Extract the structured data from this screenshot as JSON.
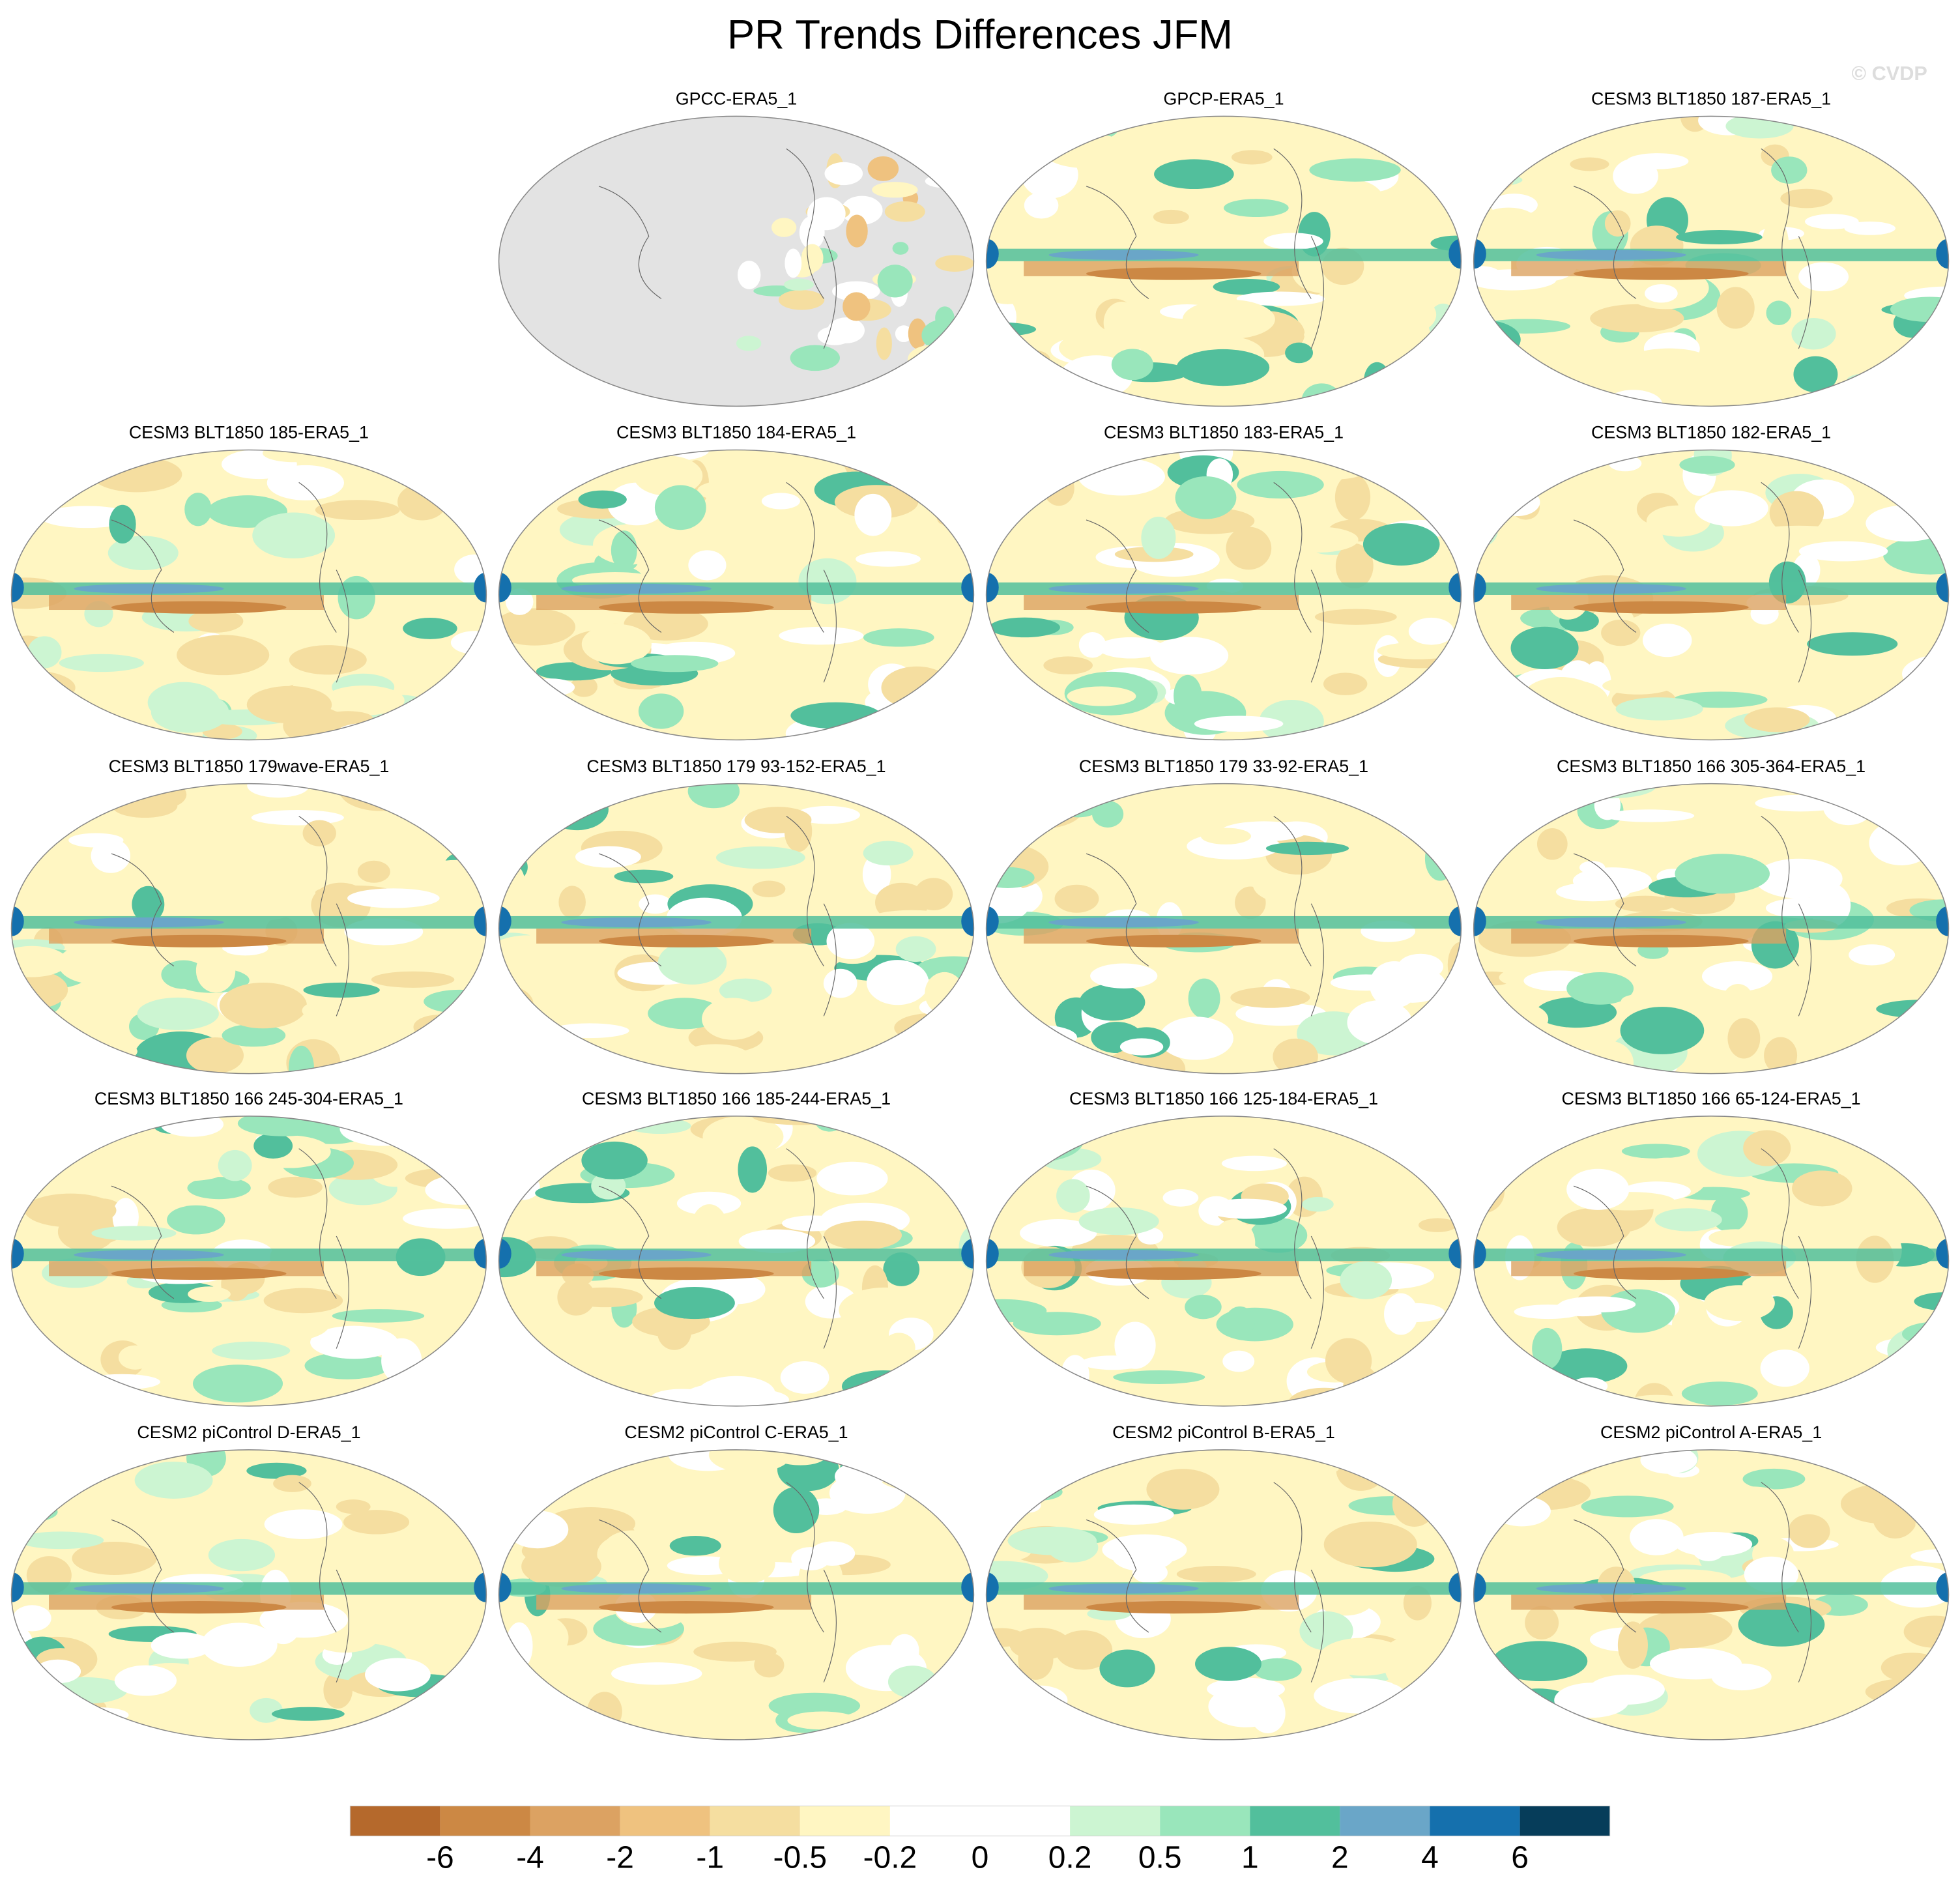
{
  "title": "PR Trends Differences JFM",
  "watermark": "© CVDP",
  "panels": [
    {
      "title": "GPCC-ERA5_1"
    },
    {
      "title": "GPCP-ERA5_1"
    },
    {
      "title": "CESM3 BLT1850 187-ERA5_1"
    },
    {
      "title": "CESM3 BLT1850 185-ERA5_1"
    },
    {
      "title": "CESM3 BLT1850 184-ERA5_1"
    },
    {
      "title": "CESM3 BLT1850 183-ERA5_1"
    },
    {
      "title": "CESM3 BLT1850 182-ERA5_1"
    },
    {
      "title": "CESM3 BLT1850 179wave-ERA5_1"
    },
    {
      "title": "CESM3 BLT1850 179 93-152-ERA5_1"
    },
    {
      "title": "CESM3 BLT1850 179 33-92-ERA5_1"
    },
    {
      "title": "CESM3 BLT1850 166 305-364-ERA5_1"
    },
    {
      "title": "CESM3 BLT1850 166 245-304-ERA5_1"
    },
    {
      "title": "CESM3 BLT1850 166 185-244-ERA5_1"
    },
    {
      "title": "CESM3 BLT1850 166 125-184-ERA5_1"
    },
    {
      "title": "CESM3 BLT1850 166 65-124-ERA5_1"
    },
    {
      "title": "CESM2 piControl D-ERA5_1"
    },
    {
      "title": "CESM2 piControl C-ERA5_1"
    },
    {
      "title": "CESM2 piControl B-ERA5_1"
    },
    {
      "title": "CESM2 piControl A-ERA5_1"
    }
  ],
  "colorbar": {
    "colors": [
      "#b5692c",
      "#cc8844",
      "#dca262",
      "#efc27f",
      "#f5dea0",
      "#fff6c2",
      "#ffffff",
      "#ffffff",
      "#ccf5d2",
      "#99e6bb",
      "#52bf9c",
      "#6aa6c8",
      "#1570ad",
      "#063d5a"
    ],
    "labels": [
      -6,
      -4,
      -2,
      -1,
      -0.5,
      -0.2,
      0,
      0.2,
      0.5,
      1,
      2,
      4,
      6
    ]
  }
}
